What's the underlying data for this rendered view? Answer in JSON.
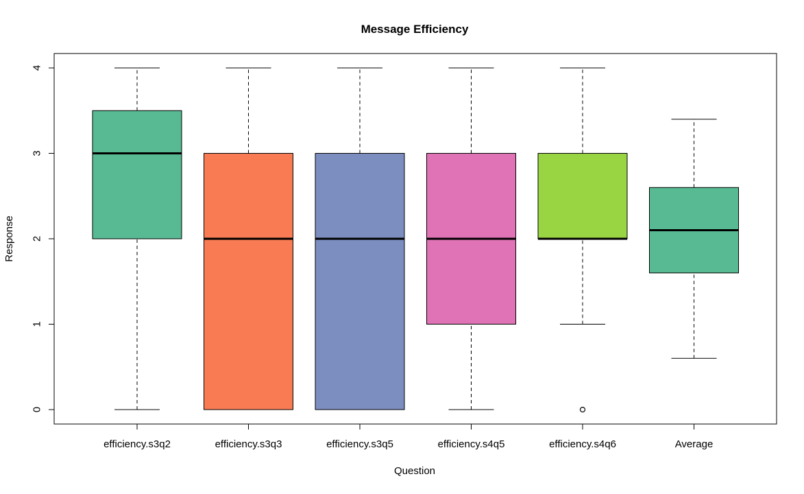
{
  "chart_data": {
    "type": "box",
    "title": "Message Efficiency",
    "xlabel": "Question",
    "ylabel": "Response",
    "ylim": [
      -0.15,
      4.15
    ],
    "yticks": [
      0,
      1,
      2,
      3,
      4
    ],
    "grid": false,
    "categories": [
      "efficiency.s3q2",
      "efficiency.s3q3",
      "efficiency.s3q5",
      "efficiency.s4q5",
      "efficiency.s4q6",
      "Average"
    ],
    "boxes": [
      {
        "name": "efficiency.s3q2",
        "whisker_low": 0,
        "q1": 2,
        "median": 3,
        "q3": 3.5,
        "whisker_high": 4,
        "outliers": [],
        "color": "#57BA93"
      },
      {
        "name": "efficiency.s3q3",
        "whisker_low": 0,
        "q1": 0,
        "median": 2,
        "q3": 3,
        "whisker_high": 4,
        "outliers": [],
        "color": "#F97B53"
      },
      {
        "name": "efficiency.s3q5",
        "whisker_low": 0,
        "q1": 0,
        "median": 2,
        "q3": 3,
        "whisker_high": 4,
        "outliers": [],
        "color": "#7B8EBF"
      },
      {
        "name": "efficiency.s4q5",
        "whisker_low": 0,
        "q1": 1,
        "median": 2,
        "q3": 3,
        "whisker_high": 4,
        "outliers": [],
        "color": "#E073B5"
      },
      {
        "name": "efficiency.s4q6",
        "whisker_low": 1,
        "q1": 2,
        "median": 2,
        "q3": 3,
        "whisker_high": 4,
        "outliers": [
          0
        ],
        "color": "#99D443"
      },
      {
        "name": "Average",
        "whisker_low": 0.6,
        "q1": 1.6,
        "median": 2.1,
        "q3": 2.6,
        "whisker_high": 3.4,
        "outliers": [],
        "color": "#57BA93"
      }
    ]
  }
}
